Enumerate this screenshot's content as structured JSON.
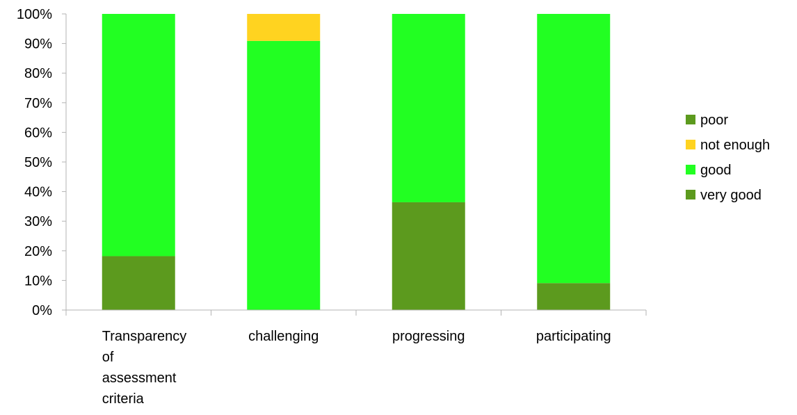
{
  "chart_data": {
    "type": "bar",
    "stacked": true,
    "percent_stacked": true,
    "categories": [
      "Transparency of assessment criteria",
      "challenging",
      "progressing",
      "participating"
    ],
    "category_label_lines": [
      [
        "Transparency",
        "of",
        "assessment",
        "criteria"
      ],
      [
        "challenging"
      ],
      [
        "progressing"
      ],
      [
        "participating"
      ]
    ],
    "series": [
      {
        "name": "very good",
        "values": [
          18.2,
          0,
          36.4,
          9.1
        ],
        "color": "#5c9a1e"
      },
      {
        "name": "good",
        "values": [
          81.8,
          90.9,
          63.6,
          90.9
        ],
        "color": "#22ff22"
      },
      {
        "name": "not enough",
        "values": [
          0,
          9.1,
          0,
          0
        ],
        "color": "#ffd320"
      },
      {
        "name": "poor",
        "values": [
          0,
          0,
          0,
          0
        ],
        "color": "#5c9a1e"
      }
    ],
    "legend_order": [
      "poor",
      "not enough",
      "good",
      "very good"
    ],
    "yticks": [
      "0%",
      "10%",
      "20%",
      "30%",
      "40%",
      "50%",
      "60%",
      "70%",
      "80%",
      "90%",
      "100%"
    ],
    "ylim": [
      0,
      100
    ],
    "title": "",
    "xlabel": "",
    "ylabel": "",
    "grid": false,
    "legend_position": "right"
  }
}
